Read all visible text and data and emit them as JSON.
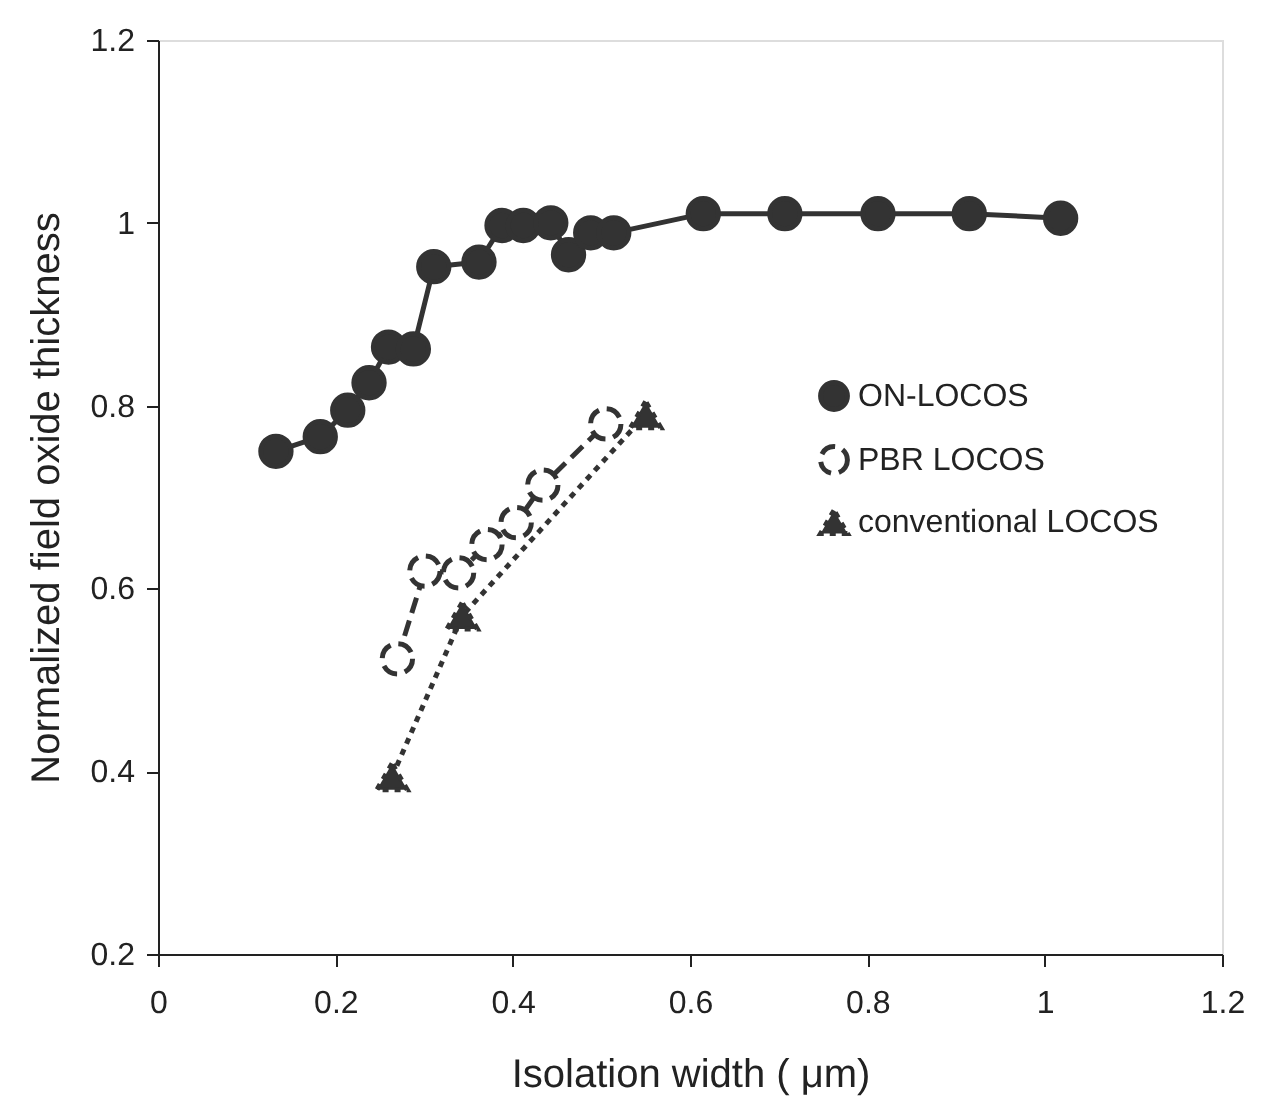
{
  "chart_data": {
    "type": "line",
    "xlabel": "Isolation width ( μm)",
    "ylabel": "Normalized field oxide thickness",
    "xlim": [
      0,
      1.2
    ],
    "xticks": [
      0,
      0.2,
      0.4,
      0.6,
      0.8,
      1,
      1.2
    ],
    "ylim": [
      0.2,
      1.2
    ],
    "yticks": [
      0.2,
      0.4,
      0.6,
      0.8,
      1,
      1.2
    ],
    "grid": false,
    "legend": "right",
    "series": [
      {
        "name": "ON-LOCOS",
        "color": "#333333",
        "marker": "circle",
        "line_style": "solid",
        "x": [
          0.133,
          0.183,
          0.214,
          0.238,
          0.26,
          0.288,
          0.311,
          0.362,
          0.388,
          0.412,
          0.443,
          0.463,
          0.488,
          0.514,
          0.615,
          0.707,
          0.812,
          0.915,
          1.018
        ],
        "values": [
          0.75,
          0.766,
          0.795,
          0.825,
          0.864,
          0.862,
          0.952,
          0.957,
          0.997,
          0.997,
          1.0,
          0.965,
          0.989,
          0.989,
          1.01,
          1.01,
          1.01,
          1.01,
          1.005
        ]
      },
      {
        "name": "PBR LOCOS",
        "color": "#333333",
        "marker": "open circle",
        "line_style": "dashed",
        "x": [
          0.27,
          0.301,
          0.339,
          0.371,
          0.404,
          0.434,
          0.505
        ],
        "values": [
          0.523,
          0.619,
          0.617,
          0.648,
          0.672,
          0.713,
          0.78
        ]
      },
      {
        "name": "conventional LOCOS",
        "color": "#333333",
        "marker": "triangle",
        "line_style": "dotted",
        "x": [
          0.264,
          0.343,
          0.55
        ],
        "values": [
          0.394,
          0.57,
          0.79
        ]
      }
    ]
  }
}
